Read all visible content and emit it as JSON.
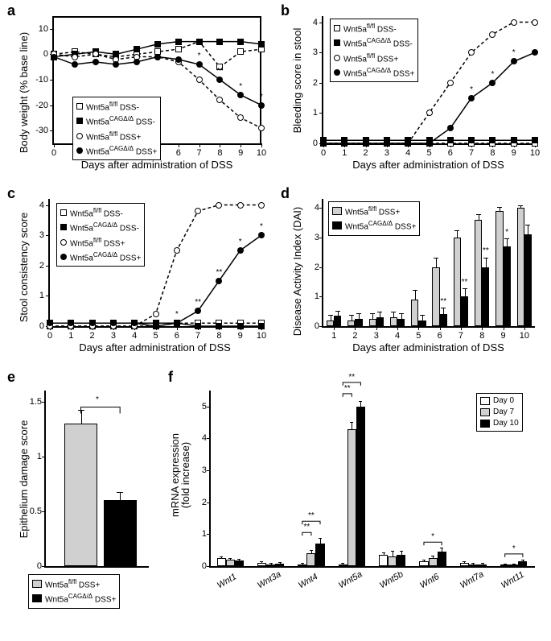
{
  "panel_a": {
    "label": "a",
    "ylabel": "Body weight (% base line)",
    "xlabel": "Days after administration of DSS",
    "xlim": [
      0,
      10
    ],
    "ylim": [
      -35,
      15
    ],
    "yticks": [
      -30,
      -20,
      -10,
      0,
      10
    ],
    "xticks": [
      0,
      1,
      2,
      3,
      4,
      5,
      6,
      7,
      8,
      9,
      10
    ],
    "legend": [
      "Wnt5a<sup>fl/fl</sup> DSS-",
      "Wnt5a<sup>CAGΔ/Δ</sup> DSS-",
      "Wnt5a<sup>fl/fl</sup> DSS+",
      "Wnt5a<sup>CAGΔ/Δ</sup> DSS+"
    ],
    "series": {
      "sq_open": [
        0,
        1,
        0,
        -1,
        0,
        1,
        2,
        5,
        -5,
        1,
        2
      ],
      "sq_fill": [
        -1,
        0,
        1,
        0,
        2,
        4,
        5,
        5,
        5,
        5,
        4
      ],
      "ci_open": [
        0,
        -1,
        0,
        -2,
        -1,
        -1,
        -3,
        -10,
        -18,
        -25,
        -29
      ],
      "ci_fill": [
        -1,
        -4,
        -3,
        -4,
        -3,
        -1,
        -2,
        -4,
        -10,
        -16,
        -20
      ]
    },
    "sig": {
      "7": "*",
      "8": "**",
      "9": "*",
      "10": "*"
    }
  },
  "panel_b": {
    "label": "b",
    "ylabel": "Bleeding score in stool",
    "xlabel": "Days after administration of DSS",
    "xlim": [
      0,
      10
    ],
    "ylim": [
      0,
      4.2
    ],
    "yticks": [
      0,
      1,
      2,
      3,
      4
    ],
    "xticks": [
      0,
      1,
      2,
      3,
      4,
      5,
      6,
      7,
      8,
      9,
      10
    ],
    "legend": [
      "Wnt5a<sup>fl/fl</sup> DSS-",
      "Wnt5a<sup>CAGΔ/Δ</sup> DSS-",
      "Wnt5a<sup>fl/fl</sup> DSS+",
      "Wnt5a<sup>CAGΔ/Δ</sup> DSS+"
    ],
    "series": {
      "sq_open": [
        0,
        0,
        0,
        0,
        0,
        0,
        0,
        0,
        0,
        0,
        0
      ],
      "sq_fill": [
        0.1,
        0.1,
        0.1,
        0.1,
        0.1,
        0.1,
        0.1,
        0.1,
        0.1,
        0.1,
        0.1
      ],
      "ci_open": [
        0,
        0,
        0,
        0,
        0,
        1,
        2,
        3,
        3.6,
        4,
        4
      ],
      "ci_fill": [
        0,
        0,
        0,
        0,
        0,
        0,
        0.5,
        1.5,
        2,
        2.7,
        3
      ]
    },
    "sig": {
      "7": "*",
      "8": "*",
      "9": "*"
    }
  },
  "panel_c": {
    "label": "c",
    "ylabel": "Stool consistency score",
    "xlabel": "Days after administration of DSS",
    "xlim": [
      0,
      10
    ],
    "ylim": [
      0,
      4.2
    ],
    "yticks": [
      0,
      1,
      2,
      3,
      4
    ],
    "xticks": [
      0,
      1,
      2,
      3,
      4,
      5,
      6,
      7,
      8,
      9,
      10
    ],
    "legend": [
      "Wnt5a<sup>fl/fl</sup> DSS-",
      "Wnt5a<sup>CAGΔ/Δ</sup> DSS-",
      "Wnt5a<sup>fl/fl</sup> DSS+",
      "Wnt5a<sup>CAGΔ/Δ</sup> DSS+"
    ],
    "series": {
      "sq_open": [
        0,
        0,
        0,
        0,
        0,
        0,
        0.1,
        0.1,
        0.1,
        0.1,
        0.1
      ],
      "sq_fill": [
        0.1,
        0.1,
        0.1,
        0.1,
        0.1,
        0.1,
        0.1,
        0,
        0,
        0,
        0
      ],
      "ci_open": [
        0,
        0,
        0,
        0,
        0,
        0.4,
        2.5,
        3.8,
        4,
        4,
        4
      ],
      "ci_fill": [
        0.1,
        0.1,
        0.1,
        0.1,
        0.1,
        0,
        0.1,
        0.5,
        1.5,
        2.5,
        3
      ]
    },
    "sig": {
      "6": "*",
      "7": "**",
      "8": "**",
      "9": "*",
      "10": "*"
    }
  },
  "panel_d": {
    "label": "d",
    "ylabel": "Disease Activity Index (DAI)",
    "xlabel": "Days after administration of DSS",
    "xlim": [
      1,
      10
    ],
    "ylim": [
      0,
      4.3
    ],
    "yticks": [
      0,
      1,
      2,
      3,
      4
    ],
    "xticks": [
      1,
      2,
      3,
      4,
      5,
      6,
      7,
      8,
      9,
      10
    ],
    "legend": [
      "Wnt5a<sup>fl/fl</sup> DSS+",
      "Wnt5a<sup>CAGΔ/Δ</sup> DSS+"
    ],
    "series": {
      "light": [
        0.2,
        0.2,
        0.25,
        0.3,
        0.9,
        2.0,
        3.0,
        3.6,
        3.9,
        4.0
      ],
      "dark": [
        0.35,
        0.25,
        0.3,
        0.25,
        0.2,
        0.4,
        1.0,
        2.0,
        2.7,
        3.1
      ]
    },
    "errors": {
      "light": [
        0.15,
        0.15,
        0.15,
        0.15,
        0.3,
        0.3,
        0.2,
        0.15,
        0.1,
        0.05
      ],
      "dark": [
        0.15,
        0.15,
        0.15,
        0.15,
        0.15,
        0.2,
        0.25,
        0.3,
        0.25,
        0.3
      ]
    },
    "sig": {
      "6": "**",
      "7": "**",
      "8": "**",
      "9": "*"
    }
  },
  "panel_e": {
    "label": "e",
    "ylabel": "Epithelium damage score",
    "ylim": [
      0,
      1.6
    ],
    "yticks": [
      0,
      0.5,
      1,
      1.5
    ],
    "legend": [
      "Wnt5a<sup>fl/fl</sup> DSS+",
      "Wnt5a<sup>CAGΔ/Δ</sup> DSS+"
    ],
    "series": {
      "light": 1.3,
      "dark": 0.6
    },
    "errors": {
      "light": 0.12,
      "dark": 0.07
    },
    "sig_text": "*"
  },
  "panel_f": {
    "label": "f",
    "ylabel": "mRNA expression\n(fold increase)",
    "ylim": [
      0,
      5.5
    ],
    "yticks": [
      0,
      1,
      2,
      3,
      4,
      5
    ],
    "legend": [
      "Day 0",
      "Day 7",
      "Day 10"
    ],
    "categories": [
      "Wnt1",
      "Wnt3a",
      "Wnt4",
      "Wnt5a",
      "Wnt5b",
      "Wnt6",
      "Wnt7a",
      "Wnt11"
    ],
    "data": {
      "Wnt1": {
        "d0": 0.25,
        "d7": 0.2,
        "d10": 0.18,
        "e0": 0.03,
        "e7": 0.03,
        "e10": 0.03
      },
      "Wnt3a": {
        "d0": 0.1,
        "d7": 0.05,
        "d10": 0.07,
        "e0": 0.02,
        "e7": 0.02,
        "e10": 0.02
      },
      "Wnt4": {
        "d0": 0.05,
        "d7": 0.4,
        "d10": 0.7,
        "e0": 0.02,
        "e7": 0.08,
        "e10": 0.15,
        "sig7": "**",
        "sig10": "**"
      },
      "Wnt5a": {
        "d0": 0.05,
        "d7": 4.3,
        "d10": 5.0,
        "e0": 0.02,
        "e7": 0.2,
        "e10": 0.15,
        "sig7": "**",
        "sig10": "**"
      },
      "Wnt5b": {
        "d0": 0.35,
        "d7": 0.3,
        "d10": 0.35,
        "e0": 0.05,
        "e7": 0.15,
        "e10": 0.1
      },
      "Wnt6": {
        "d0": 0.15,
        "d7": 0.25,
        "d10": 0.45,
        "e0": 0.03,
        "e7": 0.05,
        "e10": 0.1,
        "sig10": "*"
      },
      "Wnt7a": {
        "d0": 0.1,
        "d7": 0.05,
        "d10": 0.05,
        "e0": 0.02,
        "e7": 0.02,
        "e10": 0.02
      },
      "Wnt11": {
        "d0": 0.03,
        "d7": 0.03,
        "d10": 0.15,
        "e0": 0.01,
        "e7": 0.01,
        "e10": 0.03,
        "sig10": "*"
      }
    }
  },
  "colors": {
    "light": "#d0d0d0",
    "dark": "#000000",
    "white": "#ffffff"
  }
}
